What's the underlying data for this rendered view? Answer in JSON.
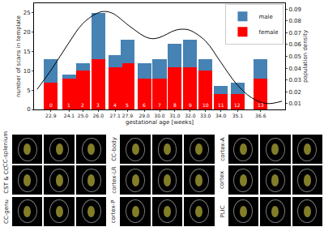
{
  "chart_data": {
    "type": "bar",
    "stacked": true,
    "x": [
      22.9,
      24.1,
      25.0,
      26.0,
      27.1,
      27.9,
      29.0,
      30.0,
      31.0,
      32.0,
      33.0,
      34.0,
      35.1,
      36.6
    ],
    "xlabel": "gestational age [weeks]",
    "ylabel": "number of scans in template",
    "y2label": "population density",
    "xlim": [
      21.8,
      38.2
    ],
    "xticks": [
      22.9,
      24.1,
      {
        "value": 25.0,
        "label": "25.0"
      },
      {
        "value": 26.0,
        "label": "26.0"
      },
      27.1,
      27.9,
      {
        "value": 29.0,
        "label": "29.0"
      },
      {
        "value": 30.0,
        "label": "30.0"
      },
      {
        "value": 31.0,
        "label": "31.0"
      },
      {
        "value": 32.0,
        "label": "32.0"
      },
      {
        "value": 33.0,
        "label": "33.0"
      },
      {
        "value": 34.0,
        "label": "34.0"
      },
      35.1,
      36.6
    ],
    "ylim": [
      0,
      27.5
    ],
    "yticks": [
      0,
      5,
      10,
      15,
      20,
      25
    ],
    "y2lim": [
      0.005,
      0.095
    ],
    "y2ticks": [
      0.01,
      0.02,
      0.03,
      0.04,
      0.05,
      0.06,
      0.07,
      0.08,
      0.09
    ],
    "legend": "upper right",
    "annotations": [
      "0",
      "1",
      "2",
      "3",
      "4",
      "5",
      "6",
      "7",
      "8",
      "9",
      "10",
      "11",
      "12",
      "13"
    ],
    "series": [
      {
        "name": "female",
        "color": "#ff0000",
        "values": [
          7,
          8,
          10,
          13,
          11,
          12,
          8,
          8,
          11,
          11,
          10,
          4,
          4,
          8
        ]
      },
      {
        "name": "male",
        "color": "#4682b4",
        "values": [
          6,
          1,
          2,
          12,
          3,
          6,
          4,
          5,
          6,
          7,
          3,
          2,
          3,
          5
        ]
      },
      {
        "type": "line",
        "axis": "y2",
        "color": "#000000",
        "x": [
          22.0,
          23.0,
          24.0,
          25.0,
          26.0,
          26.5,
          27.0,
          28.0,
          29.0,
          29.5,
          30.0,
          31.0,
          31.5,
          32.0,
          33.0,
          34.0,
          35.0,
          36.0,
          37.0,
          38.0
        ],
        "values": [
          0.022,
          0.04,
          0.06,
          0.078,
          0.087,
          0.088,
          0.086,
          0.076,
          0.067,
          0.065,
          0.066,
          0.072,
          0.073,
          0.072,
          0.063,
          0.045,
          0.027,
          0.015,
          0.01,
          0.012
        ]
      }
    ]
  },
  "panels": [
    [
      "CC-splenium",
      "CST & CC",
      "CC-genu"
    ],
    [
      "CC-body",
      "cortex-LR",
      "cortex-P"
    ],
    [
      "cortex-A",
      "cortex",
      "PLIC"
    ]
  ]
}
